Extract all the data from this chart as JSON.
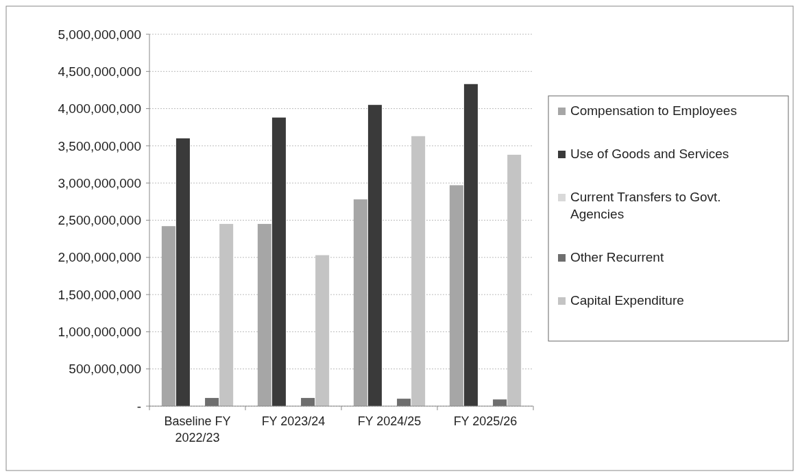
{
  "chart_data": {
    "type": "bar",
    "categories": [
      "Baseline FY 2022/23",
      "FY 2023/24",
      "FY 2024/25",
      "FY 2025/26"
    ],
    "series": [
      {
        "name": "Compensation to Employees",
        "color": "#a6a6a6",
        "values": [
          2420000000,
          2450000000,
          2780000000,
          2970000000
        ]
      },
      {
        "name": "Use of Goods and Services",
        "color": "#3a3a3a",
        "values": [
          3600000000,
          3880000000,
          4050000000,
          4330000000
        ]
      },
      {
        "name": "Current Transfers to Govt. Agencies",
        "color": "#d9d9d9",
        "values": [
          0,
          0,
          0,
          0
        ]
      },
      {
        "name": "Other Recurrent",
        "color": "#6e6e6e",
        "values": [
          110000000,
          110000000,
          100000000,
          90000000
        ]
      },
      {
        "name": "Capital Expenditure",
        "color": "#c4c4c4",
        "values": [
          2450000000,
          2030000000,
          3630000000,
          3380000000
        ]
      }
    ],
    "ylim": [
      0,
      5000000000
    ],
    "yticks": [
      {
        "value": 0,
        "label": "-"
      },
      {
        "value": 500000000,
        "label": "500,000,000"
      },
      {
        "value": 1000000000,
        "label": "1,000,000,000"
      },
      {
        "value": 1500000000,
        "label": "1,500,000,000"
      },
      {
        "value": 2000000000,
        "label": "2,000,000,000"
      },
      {
        "value": 2500000000,
        "label": "2,500,000,000"
      },
      {
        "value": 3000000000,
        "label": "3,000,000,000"
      },
      {
        "value": 3500000000,
        "label": "3,500,000,000"
      },
      {
        "value": 4000000000,
        "label": "4,000,000,000"
      },
      {
        "value": 4500000000,
        "label": "4,500,000,000"
      },
      {
        "value": 5000000000,
        "label": "5,000,000,000"
      }
    ],
    "grid": "y",
    "legend": "right"
  }
}
